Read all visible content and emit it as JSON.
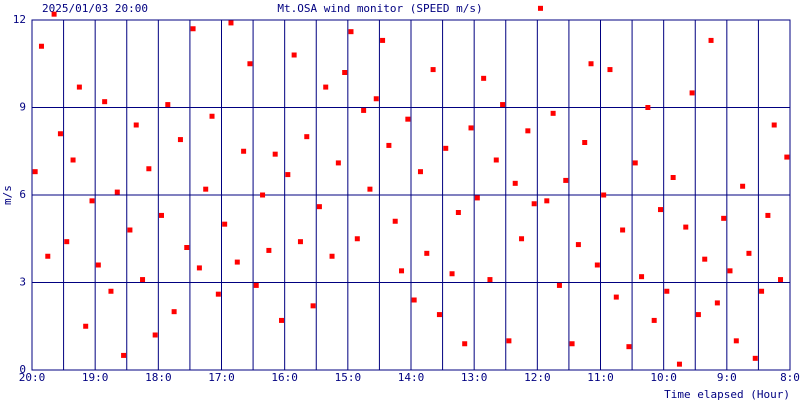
{
  "chart_data": {
    "type": "scatter",
    "title": "Mt.OSA wind monitor (SPEED m/s)",
    "timestamp": "2025/01/03 20:00",
    "x_label": "Time elapsed (Hour)",
    "y_label": "m/s",
    "color": "#ff0000",
    "grid": true,
    "xlim": [
      20,
      8
    ],
    "xticks": [
      {
        "value": 20,
        "label": "20:0"
      },
      {
        "value": 19,
        "label": "19:0"
      },
      {
        "value": 18,
        "label": "18:0"
      },
      {
        "value": 17,
        "label": "17:0"
      },
      {
        "value": 16,
        "label": "16:0"
      },
      {
        "value": 15,
        "label": "15:0"
      },
      {
        "value": 14,
        "label": "14:0"
      },
      {
        "value": 13,
        "label": "13:0"
      },
      {
        "value": 12,
        "label": "12:0"
      },
      {
        "value": 11,
        "label": "11:0"
      },
      {
        "value": 10,
        "label": "10:0"
      },
      {
        "value": 9,
        "label": "9:0"
      },
      {
        "value": 8,
        "label": "8:0"
      }
    ],
    "ylim": [
      0,
      12
    ],
    "yticks": [
      0,
      3,
      6,
      9,
      12
    ],
    "x": [
      19.95,
      19.85,
      19.75,
      19.65,
      19.55,
      19.45,
      19.35,
      19.25,
      19.15,
      19.05,
      18.95,
      18.85,
      18.75,
      18.65,
      18.55,
      18.45,
      18.35,
      18.25,
      18.15,
      18.05,
      17.95,
      17.85,
      17.75,
      17.65,
      17.55,
      17.45,
      17.35,
      17.25,
      17.15,
      17.05,
      16.95,
      16.85,
      16.75,
      16.65,
      16.55,
      16.45,
      16.35,
      16.25,
      16.15,
      16.05,
      15.95,
      15.85,
      15.75,
      15.65,
      15.55,
      15.45,
      15.35,
      15.25,
      15.15,
      15.05,
      14.95,
      14.85,
      14.75,
      14.65,
      14.55,
      14.45,
      14.35,
      14.25,
      14.15,
      14.05,
      13.95,
      13.85,
      13.75,
      13.65,
      13.55,
      13.45,
      13.35,
      13.25,
      13.15,
      13.05,
      12.95,
      12.85,
      12.75,
      12.65,
      12.55,
      12.45,
      12.35,
      12.25,
      12.15,
      12.05,
      11.95,
      11.85,
      11.75,
      11.65,
      11.55,
      11.45,
      11.35,
      11.25,
      11.15,
      11.05,
      10.95,
      10.85,
      10.75,
      10.65,
      10.55,
      10.45,
      10.35,
      10.25,
      10.15,
      10.05,
      9.95,
      9.85,
      9.75,
      9.65,
      9.55,
      9.45,
      9.35,
      9.25,
      9.15,
      9.05,
      8.95,
      8.85,
      8.75,
      8.65,
      8.55,
      8.45,
      8.35,
      8.25,
      8.15,
      8.05
    ],
    "values": [
      6.8,
      11.1,
      3.9,
      12.2,
      8.1,
      4.4,
      7.2,
      9.7,
      1.5,
      5.8,
      3.6,
      9.2,
      2.7,
      6.1,
      0.5,
      4.8,
      8.4,
      3.1,
      6.9,
      1.2,
      5.3,
      9.1,
      2.0,
      7.9,
      4.2,
      11.7,
      3.5,
      6.2,
      8.7,
      2.6,
      5.0,
      11.9,
      3.7,
      7.5,
      10.5,
      2.9,
      6.0,
      4.1,
      7.4,
      1.7,
      6.7,
      10.8,
      4.4,
      8.0,
      2.2,
      5.6,
      9.7,
      3.9,
      7.1,
      10.2,
      11.6,
      4.5,
      8.9,
      6.2,
      9.3,
      11.3,
      7.7,
      5.1,
      3.4,
      8.6,
      2.4,
      6.8,
      4.0,
      10.3,
      1.9,
      7.6,
      3.3,
      5.4,
      0.9,
      8.3,
      5.9,
      10.0,
      3.1,
      7.2,
      9.1,
      1.0,
      6.4,
      4.5,
      8.2,
      5.7,
      12.4,
      5.8,
      8.8,
      2.9,
      6.5,
      0.9,
      4.3,
      7.8,
      10.5,
      3.6,
      6.0,
      10.3,
      2.5,
      4.8,
      0.8,
      7.1,
      3.2,
      9.0,
      1.7,
      5.5,
      2.7,
      6.6,
      0.2,
      4.9,
      9.5,
      1.9,
      3.8,
      11.3,
      2.3,
      5.2,
      3.4,
      1.0,
      6.3,
      4.0,
      0.4,
      2.7,
      5.3,
      8.4,
      3.1,
      7.3
    ]
  }
}
